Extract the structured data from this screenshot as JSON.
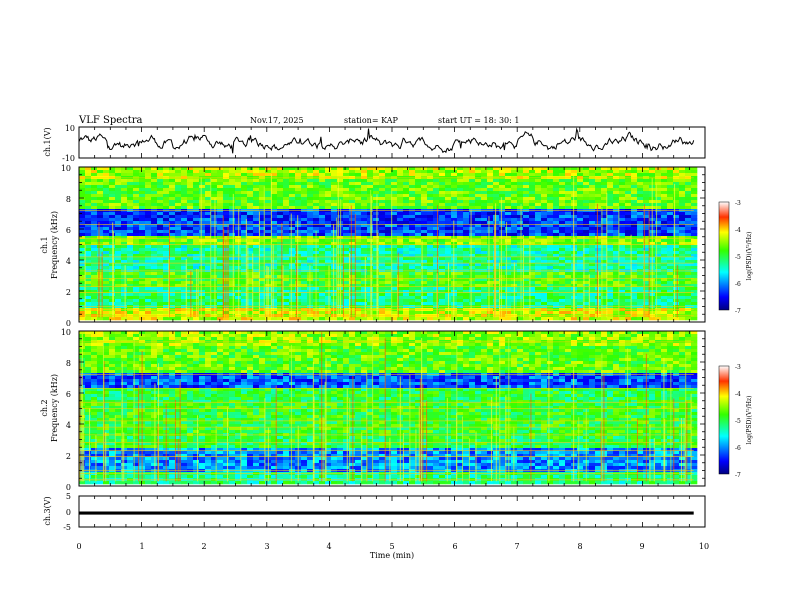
{
  "header": {
    "title": "VLF Spectra",
    "date": "Nov.17, 2025",
    "station": "station= KAP",
    "start": "start  UT  =   18: 30: 1"
  },
  "chart_data": [
    {
      "type": "line",
      "name": "ch1-waveform",
      "ylabel": "ch.1(V)",
      "ylim": [
        -10,
        10
      ],
      "yticks": [
        "10",
        "-10"
      ],
      "xlim": [
        0,
        10
      ]
    },
    {
      "type": "heatmap",
      "name": "ch1-spectrogram",
      "ylabel_1": "ch.1",
      "ylabel_2": "Frequency  (kHz)",
      "ylim": [
        0,
        10
      ],
      "yticks": [
        "0",
        "2",
        "4",
        "6",
        "8",
        "10"
      ],
      "xlim": [
        0,
        10
      ],
      "colorbar": {
        "label": "log(PSD)(V²/Hz)",
        "range": [
          -7,
          -3
        ],
        "ticks": [
          "-3",
          "-4",
          "-5",
          "-6",
          "-7"
        ]
      },
      "bands_khz": [
        {
          "lo": 0.1,
          "hi": 1.0,
          "level": -4.3
        },
        {
          "lo": 1.0,
          "hi": 2.3,
          "level": -5.2
        },
        {
          "lo": 2.3,
          "hi": 3.3,
          "level": -4.8
        },
        {
          "lo": 3.3,
          "hi": 5.0,
          "level": -5.3
        },
        {
          "lo": 5.0,
          "hi": 5.5,
          "level": -4.6
        },
        {
          "lo": 5.5,
          "hi": 7.3,
          "level": -6.3
        },
        {
          "lo": 7.3,
          "hi": 9.3,
          "level": -4.7
        },
        {
          "lo": 9.3,
          "hi": 10.0,
          "level": -4.4
        }
      ]
    },
    {
      "type": "heatmap",
      "name": "ch2-spectrogram",
      "ylabel_1": "ch.2",
      "ylabel_2": "Frequency  (kHz)",
      "ylim": [
        0,
        10
      ],
      "yticks": [
        "0",
        "2",
        "4",
        "6",
        "8",
        "10"
      ],
      "xlim": [
        0,
        10
      ],
      "colorbar": {
        "label": "log(PSD)(V²/Hz)",
        "range": [
          -7,
          -3
        ],
        "ticks": [
          "-3",
          "-4",
          "-5",
          "-6",
          "-7"
        ]
      },
      "bands_khz": [
        {
          "lo": 0.1,
          "hi": 1.0,
          "level": -5.2
        },
        {
          "lo": 1.0,
          "hi": 2.5,
          "level": -6.0
        },
        {
          "lo": 2.5,
          "hi": 3.3,
          "level": -5.0
        },
        {
          "lo": 3.3,
          "hi": 5.3,
          "level": -4.9
        },
        {
          "lo": 5.3,
          "hi": 6.3,
          "level": -5.0
        },
        {
          "lo": 6.3,
          "hi": 7.3,
          "level": -6.2
        },
        {
          "lo": 7.3,
          "hi": 9.0,
          "level": -4.7
        },
        {
          "lo": 9.0,
          "hi": 10.0,
          "level": -4.5
        }
      ]
    },
    {
      "type": "line",
      "name": "ch3-waveform",
      "ylabel": "ch.3(V)",
      "ylim": [
        -5,
        5
      ],
      "yticks": [
        "5",
        "0",
        "-5"
      ],
      "xlim": [
        0,
        10
      ],
      "xlabel": "Time  (min)",
      "xticks": [
        "0",
        "1",
        "2",
        "3",
        "4",
        "5",
        "6",
        "7",
        "8",
        "9",
        "10"
      ],
      "level": [
        -1.0,
        0.0
      ]
    }
  ]
}
